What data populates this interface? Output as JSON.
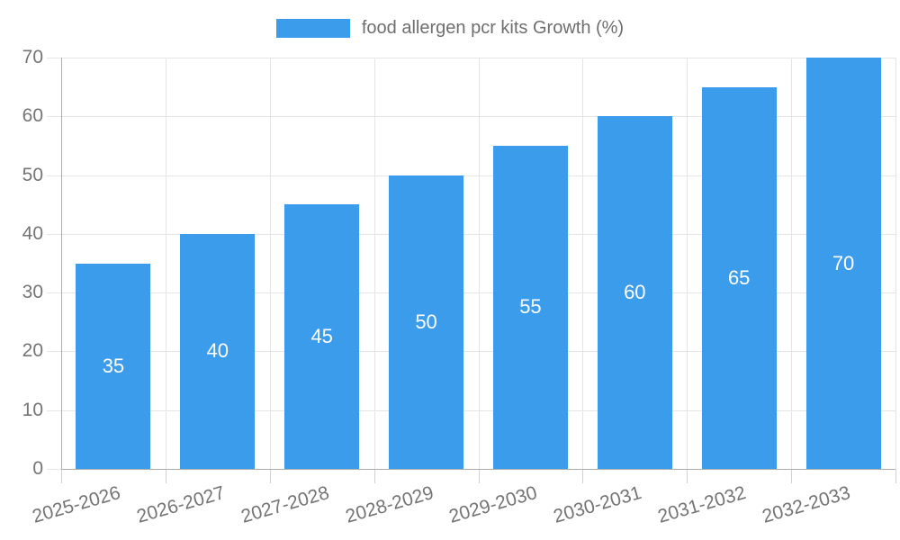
{
  "legend": {
    "label": "food allergen pcr kits Growth (%)"
  },
  "colors": {
    "bar": "#3b9cec",
    "grid": "#e5e5e5",
    "axis": "#acacac",
    "tick_text": "#757575",
    "legend_text": "#6e6e6e",
    "data_label": "#ffffff",
    "background": "#ffffff"
  },
  "chart_data": {
    "type": "bar",
    "title": "food allergen pcr kits Growth (%)",
    "series_name": "food allergen pcr kits Growth (%)",
    "categories": [
      "2025-2026",
      "2026-2027",
      "2027-2028",
      "2028-2029",
      "2029-2030",
      "2030-2031",
      "2031-2032",
      "2032-2033"
    ],
    "values": [
      35,
      40,
      45,
      50,
      55,
      60,
      65,
      70
    ],
    "data_labels": [
      35,
      40,
      45,
      50,
      55,
      60,
      65,
      70
    ],
    "data_label_position": "inside-center",
    "xlabel": "",
    "ylabel": "",
    "ylim": [
      0,
      70
    ],
    "yticks": [
      0,
      10,
      20,
      30,
      40,
      50,
      60,
      70
    ],
    "grid": true,
    "legend_position": "top",
    "x_tick_rotation_deg": -16
  }
}
